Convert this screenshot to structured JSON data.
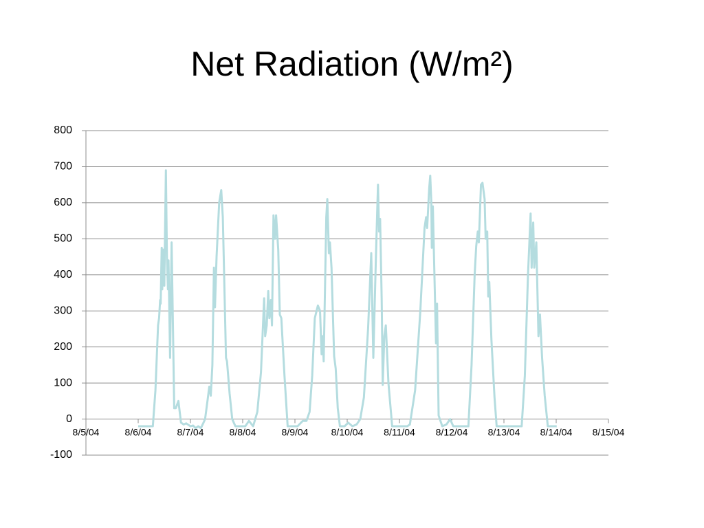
{
  "chart_data": {
    "type": "line",
    "title": "Net Radiation (W/m²)",
    "xlim": [
      0,
      10
    ],
    "xticks": [
      {
        "value": 0,
        "label": "8/5/04"
      },
      {
        "value": 1,
        "label": "8/6/04"
      },
      {
        "value": 2,
        "label": "8/7/04"
      },
      {
        "value": 3,
        "label": "8/8/04"
      },
      {
        "value": 4,
        "label": "8/9/04"
      },
      {
        "value": 5,
        "label": "8/10/04"
      },
      {
        "value": 6,
        "label": "8/11/04"
      },
      {
        "value": 7,
        "label": "8/12/04"
      },
      {
        "value": 8,
        "label": "8/13/04"
      },
      {
        "value": 9,
        "label": "8/14/04"
      },
      {
        "value": 10,
        "label": "8/15/04"
      }
    ],
    "ylim": [
      -100,
      800
    ],
    "yticks": [
      -100,
      0,
      100,
      200,
      300,
      400,
      500,
      600,
      700,
      800
    ],
    "grid": true,
    "x": [
      1.0,
      1.2,
      1.28,
      1.33,
      1.38,
      1.4,
      1.42,
      1.43,
      1.45,
      1.46,
      1.48,
      1.5,
      1.53,
      1.55,
      1.57,
      1.58,
      1.61,
      1.64,
      1.66,
      1.69,
      1.72,
      1.77,
      1.82,
      1.87,
      1.92,
      2.0,
      2.05,
      2.1,
      2.15,
      2.2,
      2.25,
      2.28,
      2.33,
      2.36,
      2.39,
      2.42,
      2.45,
      2.47,
      2.5,
      2.55,
      2.59,
      2.62,
      2.66,
      2.68,
      2.7,
      2.75,
      2.8,
      2.86,
      2.95,
      3.05,
      3.12,
      3.2,
      3.28,
      3.35,
      3.41,
      3.43,
      3.46,
      3.49,
      3.51,
      3.54,
      3.56,
      3.59,
      3.62,
      3.64,
      3.68,
      3.71,
      3.74,
      3.8,
      3.86,
      3.95,
      4.05,
      4.15,
      4.22,
      4.28,
      4.33,
      4.38,
      4.44,
      4.48,
      4.51,
      4.53,
      4.55,
      4.6,
      4.62,
      4.65,
      4.67,
      4.7,
      4.75,
      4.78,
      4.82,
      4.86,
      4.95,
      5.02,
      5.1,
      5.18,
      5.25,
      5.32,
      5.4,
      5.46,
      5.5,
      5.55,
      5.59,
      5.61,
      5.63,
      5.66,
      5.68,
      5.71,
      5.74,
      5.79,
      5.86,
      5.95,
      6.05,
      6.15,
      6.2,
      6.3,
      6.4,
      6.48,
      6.51,
      6.53,
      6.57,
      6.59,
      6.61,
      6.62,
      6.64,
      6.67,
      6.7,
      6.72,
      6.75,
      6.82,
      6.9,
      6.97,
      7.03,
      7.15,
      7.32,
      7.38,
      7.44,
      7.47,
      7.5,
      7.52,
      7.56,
      7.59,
      7.63,
      7.65,
      7.68,
      7.7,
      7.72,
      7.76,
      7.82,
      7.86,
      8.0,
      8.2,
      8.34,
      8.4,
      8.46,
      8.51,
      8.53,
      8.56,
      8.58,
      8.62,
      8.66,
      8.69,
      8.73,
      8.78,
      8.84,
      8.92,
      9.01
    ],
    "series": [
      {
        "color": "#b4dcdf",
        "values": [
          -20,
          -20,
          -20,
          80,
          260,
          280,
          330,
          320,
          475,
          360,
          470,
          370,
          690,
          450,
          360,
          440,
          170,
          490,
          300,
          30,
          30,
          50,
          -10,
          -15,
          -12,
          -20,
          -18,
          -25,
          -20,
          -25,
          -10,
          0,
          55,
          90,
          65,
          150,
          420,
          310,
          450,
          600,
          635,
          560,
          300,
          170,
          160,
          70,
          0,
          -20,
          -20,
          -20,
          -5,
          -20,
          20,
          130,
          335,
          230,
          260,
          355,
          280,
          330,
          260,
          565,
          500,
          565,
          470,
          290,
          280,
          120,
          -20,
          -20,
          -20,
          -5,
          -5,
          20,
          120,
          280,
          315,
          300,
          180,
          230,
          160,
          560,
          610,
          460,
          490,
          420,
          175,
          140,
          30,
          -20,
          -20,
          -10,
          -20,
          -15,
          0,
          60,
          250,
          460,
          170,
          450,
          650,
          520,
          555,
          330,
          95,
          230,
          260,
          100,
          -20,
          -20,
          -20,
          -20,
          -15,
          80,
          300,
          530,
          560,
          530,
          640,
          675,
          600,
          475,
          590,
          400,
          210,
          320,
          10,
          -20,
          -15,
          0,
          -20,
          -20,
          -20,
          150,
          400,
          480,
          520,
          490,
          650,
          655,
          610,
          500,
          520,
          340,
          380,
          220,
          60,
          -20,
          -20,
          -20,
          -20,
          120,
          400,
          570,
          420,
          545,
          420,
          490,
          230,
          290,
          170,
          65,
          -20,
          -20,
          -20
        ]
      }
    ]
  }
}
